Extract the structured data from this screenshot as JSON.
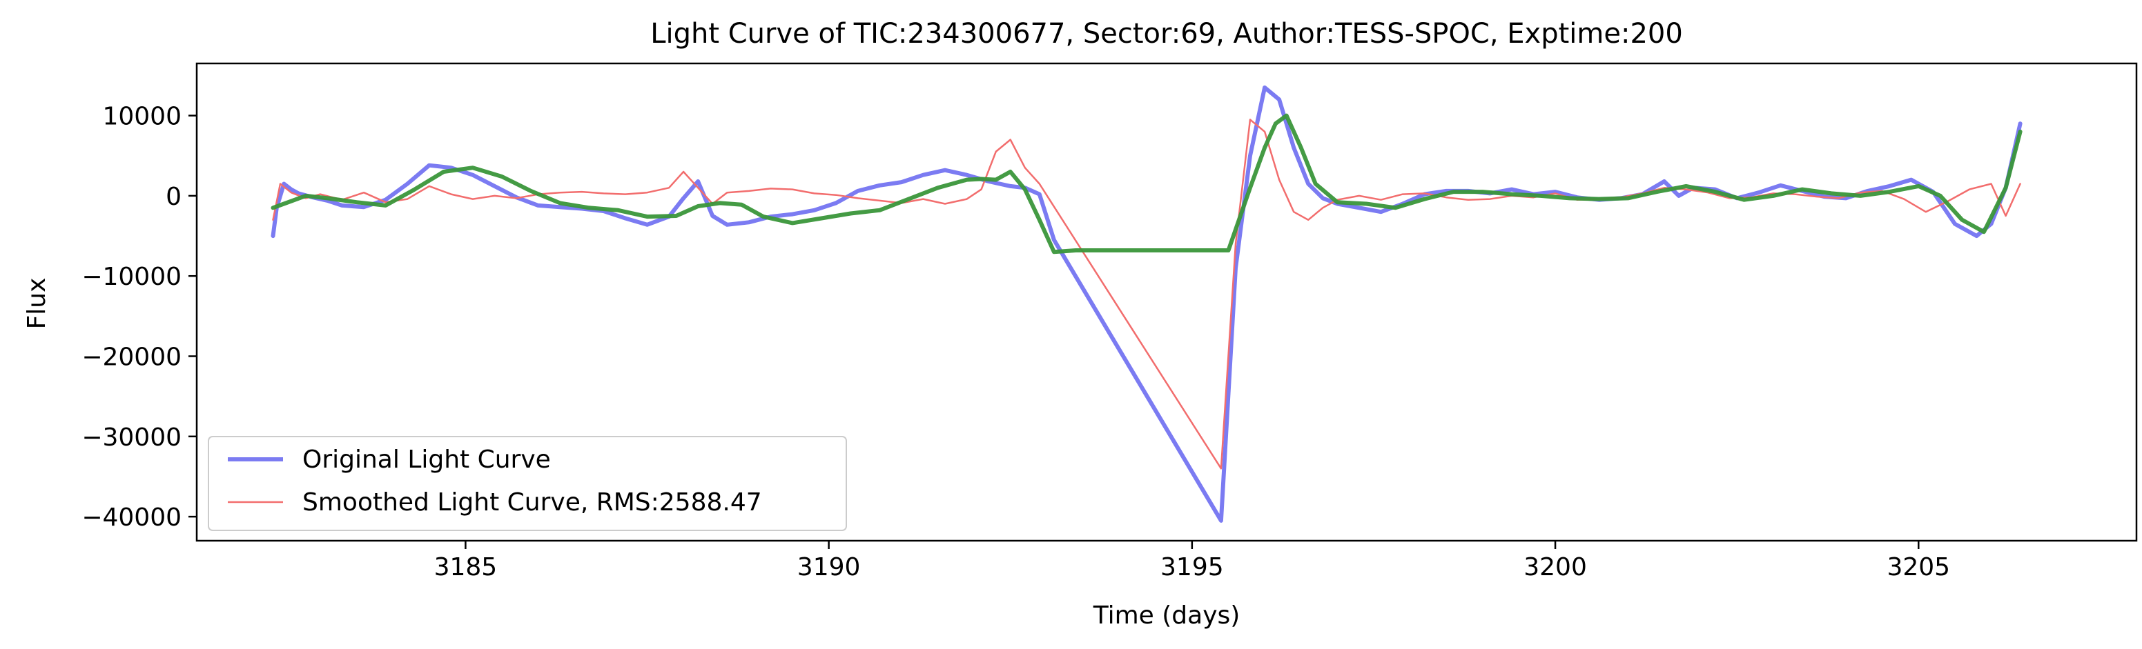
{
  "chart_data": {
    "type": "line",
    "title": "Light Curve of TIC:234300677, Sector:69, Author:TESS-SPOC, Exptime:200",
    "xlabel": "Time (days)",
    "ylabel": "Flux",
    "xlim": [
      3181.3,
      3208.0
    ],
    "ylim": [
      -43000,
      16500
    ],
    "x_ticks": [
      3185,
      3190,
      3195,
      3200,
      3205
    ],
    "y_ticks": [
      10000,
      0,
      -10000,
      -20000,
      -30000,
      -40000
    ],
    "x_tick_labels": [
      "3185",
      "3190",
      "3195",
      "3200",
      "3205"
    ],
    "y_tick_labels": [
      "10000",
      "0",
      "−10000",
      "−20000",
      "−30000",
      "−40000"
    ],
    "grid": false,
    "legend_position": "lower-left",
    "series": [
      {
        "name": "Original Light Curve",
        "color": "#7b7bf2",
        "x": [
          3182.35,
          3182.4,
          3182.5,
          3182.6,
          3182.7,
          3182.9,
          3183.1,
          3183.3,
          3183.6,
          3183.9,
          3184.2,
          3184.5,
          3184.8,
          3185.1,
          3185.4,
          3185.7,
          3186.0,
          3186.3,
          3186.6,
          3186.9,
          3187.2,
          3187.5,
          3187.8,
          3188.0,
          3188.2,
          3188.4,
          3188.6,
          3188.9,
          3189.2,
          3189.5,
          3189.8,
          3190.1,
          3190.4,
          3190.7,
          3191.0,
          3191.3,
          3191.6,
          3191.9,
          3192.2,
          3192.5,
          3192.7,
          3192.9,
          3193.1,
          3195.4,
          3195.6,
          3195.8,
          3196.0,
          3196.2,
          3196.4,
          3196.6,
          3196.8,
          3197.0,
          3197.3,
          3197.6,
          3197.9,
          3198.2,
          3198.5,
          3198.8,
          3199.1,
          3199.4,
          3199.7,
          3200.0,
          3200.3,
          3200.6,
          3200.9,
          3201.2,
          3201.5,
          3201.7,
          3201.9,
          3202.2,
          3202.5,
          3202.8,
          3203.1,
          3203.4,
          3203.7,
          3204.0,
          3204.3,
          3204.6,
          3204.9,
          3205.2,
          3205.5,
          3205.8,
          3206.0,
          3206.2,
          3206.4
        ],
        "y": [
          -5000,
          -1500,
          1500,
          800,
          300,
          -200,
          -600,
          -1200,
          -1400,
          -500,
          1500,
          3800,
          3500,
          2600,
          1200,
          -200,
          -1200,
          -1400,
          -1600,
          -1900,
          -2800,
          -3600,
          -2600,
          -300,
          1800,
          -2500,
          -3600,
          -3300,
          -2600,
          -2300,
          -1800,
          -900,
          600,
          1300,
          1700,
          2600,
          3200,
          2600,
          1800,
          1200,
          1000,
          200,
          -5500,
          -40500,
          -9000,
          5000,
          13500,
          12000,
          6000,
          1500,
          -300,
          -1000,
          -1500,
          -2000,
          -1000,
          200,
          600,
          600,
          300,
          800,
          200,
          500,
          -200,
          -500,
          -300,
          200,
          1800,
          0,
          1000,
          800,
          -300,
          400,
          1300,
          600,
          -100,
          -300,
          600,
          1200,
          2000,
          500,
          -3500,
          -5000,
          -3500,
          1000,
          9000
        ]
      },
      {
        "name": "Smoothed Light Curve, RMS:2588.47",
        "color": "#f26d6d",
        "x": [
          3182.35,
          3182.45,
          3182.6,
          3182.8,
          3183.0,
          3183.3,
          3183.6,
          3183.9,
          3184.2,
          3184.5,
          3184.8,
          3185.1,
          3185.4,
          3185.7,
          3186.0,
          3186.3,
          3186.6,
          3186.9,
          3187.2,
          3187.5,
          3187.8,
          3188.0,
          3188.2,
          3188.4,
          3188.6,
          3188.9,
          3189.2,
          3189.5,
          3189.8,
          3190.1,
          3190.4,
          3190.7,
          3191.0,
          3191.3,
          3191.6,
          3191.9,
          3192.1,
          3192.3,
          3192.5,
          3192.7,
          3192.9,
          3195.4,
          3195.6,
          3195.8,
          3196.0,
          3196.2,
          3196.4,
          3196.6,
          3196.8,
          3197.0,
          3197.3,
          3197.6,
          3197.9,
          3198.2,
          3198.5,
          3198.8,
          3199.1,
          3199.4,
          3199.7,
          3200.0,
          3200.3,
          3200.6,
          3200.9,
          3201.2,
          3201.5,
          3201.8,
          3202.1,
          3202.4,
          3202.7,
          3203.0,
          3203.3,
          3203.6,
          3203.9,
          3204.2,
          3204.5,
          3204.8,
          3205.1,
          3205.4,
          3205.7,
          3206.0,
          3206.2,
          3206.4
        ],
        "y": [
          -3000,
          1500,
          400,
          -300,
          200,
          -500,
          400,
          -800,
          -400,
          1200,
          200,
          -400,
          0,
          -300,
          200,
          400,
          500,
          300,
          200,
          400,
          1000,
          3000,
          1000,
          -1000,
          400,
          600,
          900,
          800,
          300,
          100,
          -300,
          -600,
          -900,
          -400,
          -1000,
          -400,
          800,
          5500,
          7000,
          3500,
          1500,
          -34000,
          -6000,
          9500,
          8000,
          2000,
          -2000,
          -3000,
          -1500,
          -500,
          0,
          -500,
          200,
          300,
          -200,
          -500,
          -400,
          0,
          -200,
          300,
          -500,
          -400,
          -200,
          300,
          1000,
          800,
          400,
          -300,
          -200,
          300,
          200,
          -100,
          -300,
          400,
          600,
          -400,
          -2000,
          -700,
          800,
          1500,
          -2500,
          1500
        ]
      },
      {
        "name": "",
        "color": "#3a963a",
        "x": [
          3182.35,
          3182.5,
          3182.8,
          3183.1,
          3183.5,
          3183.9,
          3184.3,
          3184.7,
          3185.1,
          3185.5,
          3185.9,
          3186.3,
          3186.7,
          3187.1,
          3187.5,
          3187.9,
          3188.2,
          3188.5,
          3188.8,
          3189.1,
          3189.5,
          3189.9,
          3190.3,
          3190.7,
          3191.1,
          3191.5,
          3191.9,
          3192.1,
          3192.3,
          3192.5,
          3192.7,
          3192.9,
          3193.1,
          3193.4,
          3195.5,
          3195.8,
          3196.0,
          3196.15,
          3196.3,
          3196.5,
          3196.7,
          3197.0,
          3197.4,
          3197.8,
          3198.2,
          3198.6,
          3199.0,
          3199.4,
          3199.8,
          3200.2,
          3200.6,
          3201.0,
          3201.4,
          3201.8,
          3202.2,
          3202.6,
          3203.0,
          3203.4,
          3203.8,
          3204.2,
          3204.6,
          3205.0,
          3205.3,
          3205.6,
          3205.9,
          3206.2,
          3206.4
        ],
        "y": [
          -1500,
          -1000,
          0,
          -300,
          -800,
          -1200,
          800,
          3000,
          3500,
          2400,
          600,
          -900,
          -1500,
          -1800,
          -2600,
          -2500,
          -1300,
          -900,
          -1100,
          -2600,
          -3400,
          -2800,
          -2200,
          -1800,
          -400,
          1000,
          2000,
          2100,
          2000,
          3000,
          800,
          -3000,
          -7000,
          -6800,
          -6800,
          1000,
          6000,
          9000,
          10000,
          6000,
          1500,
          -800,
          -1000,
          -1500,
          -400,
          500,
          500,
          200,
          0,
          -300,
          -400,
          -300,
          500,
          1200,
          500,
          -500,
          0,
          800,
          300,
          0,
          500,
          1200,
          0,
          -3000,
          -4500,
          1000,
          8000
        ]
      }
    ]
  }
}
